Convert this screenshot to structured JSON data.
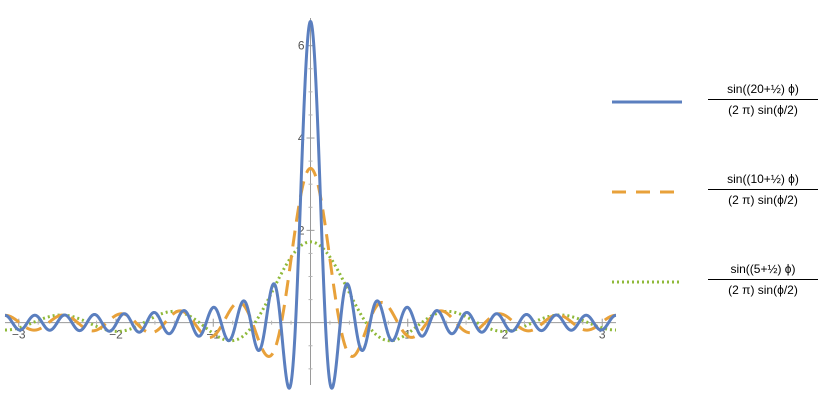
{
  "chart_data": {
    "type": "line",
    "xlim": [
      -3.14159,
      3.14159
    ],
    "ylim": [
      -1.35,
      6.6
    ],
    "x_ticks": [
      -3,
      -2,
      -1,
      1,
      2,
      3
    ],
    "x_tick_labels": [
      "−3",
      "−2",
      "−1",
      "1",
      "2",
      "3"
    ],
    "y_ticks": [
      2,
      4,
      6
    ],
    "y_tick_labels": [
      "2",
      "4",
      "6"
    ],
    "grid": false,
    "legend_position": "right",
    "series": [
      {
        "name": "sin((20+1/2) ϕ) / ((2 π) sin(ϕ/2))",
        "N": 20,
        "color": "#5b7fbf",
        "style": "solid",
        "num_text": "sin((20+½) ϕ)",
        "den_text": "(2 π) sin(ϕ/2)"
      },
      {
        "name": "sin((10+1/2) ϕ) / ((2 π) sin(ϕ/2))",
        "N": 10,
        "color": "#e8a13a",
        "style": "dashed",
        "num_text": "sin((10+½) ϕ)",
        "den_text": "(2 π) sin(ϕ/2)"
      },
      {
        "name": "sin((5+1/2) ϕ) / ((2 π) sin(ϕ/2))",
        "N": 5,
        "color": "#8fb93a",
        "style": "dotted",
        "num_text": "sin((5+½) ϕ)",
        "den_text": "(2 π) sin(ϕ/2)"
      }
    ]
  }
}
